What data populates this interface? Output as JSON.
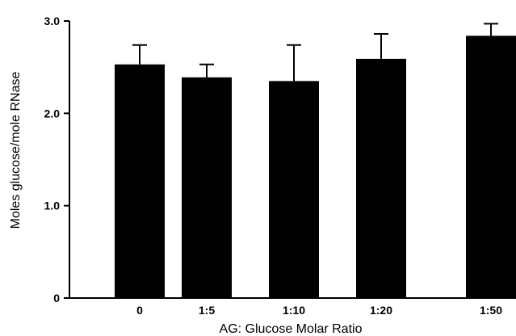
{
  "chart_data": {
    "type": "bar",
    "categories": [
      "0",
      "1:5",
      "1:10",
      "1:20",
      "1:50"
    ],
    "values": [
      2.53,
      2.39,
      2.35,
      2.59,
      2.84
    ],
    "error_upper": [
      0.21,
      0.14,
      0.39,
      0.27,
      0.13
    ],
    "title": "",
    "xlabel": "AG: Glucose Molar Ratio",
    "ylabel": "Moles glucose/mole RNase",
    "ylim": [
      0,
      3.0
    ],
    "yticks": [
      0,
      1.0,
      2.0,
      3.0
    ],
    "ytick_labels": [
      "0",
      "1.0",
      "2.0",
      "3.0"
    ],
    "grid": false,
    "bar_color": "#000000"
  }
}
